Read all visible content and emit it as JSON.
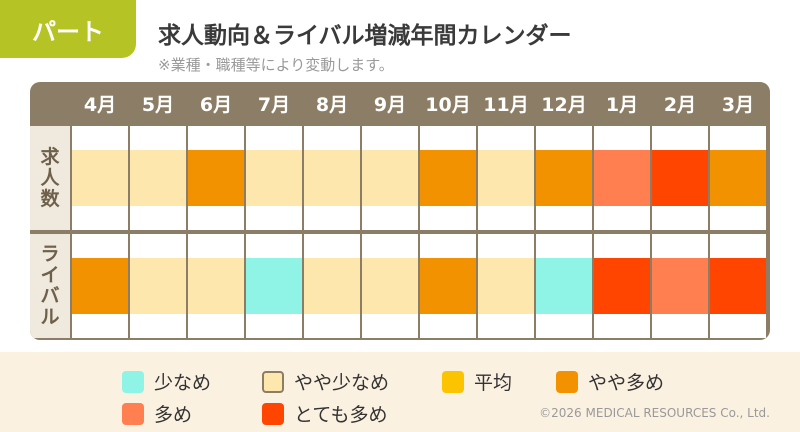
{
  "header": {
    "tag": "パート",
    "title": "求人動向＆ライバル増減年間カレンダー",
    "note": "※業種・職種等により変動します。"
  },
  "chart_data": {
    "type": "heatmap",
    "months": [
      "4月",
      "5月",
      "6月",
      "7月",
      "8月",
      "9月",
      "10月",
      "11月",
      "12月",
      "1月",
      "2月",
      "3月"
    ],
    "rows": [
      {
        "label": "求人数",
        "levels": [
          "やや少なめ",
          "やや少なめ",
          "やや多め",
          "やや少なめ",
          "やや少なめ",
          "やや少なめ",
          "やや多め",
          "やや少なめ",
          "やや多め",
          "多め",
          "とても多め",
          "やや多め"
        ]
      },
      {
        "label": "ライバル",
        "levels": [
          "やや多め",
          "やや少なめ",
          "やや少なめ",
          "少なめ",
          "やや少なめ",
          "やや少なめ",
          "やや多め",
          "やや少なめ",
          "少なめ",
          "とても多め",
          "多め",
          "とても多め"
        ]
      }
    ],
    "legend": [
      {
        "label": "少なめ",
        "color": "#8ff3e6"
      },
      {
        "label": "やや少なめ",
        "color": "#fde7ad"
      },
      {
        "label": "平均",
        "color": "#fcc400"
      },
      {
        "label": "やや多め",
        "color": "#f39200"
      },
      {
        "label": "多め",
        "color": "#ff7f50"
      },
      {
        "label": "とても多め",
        "color": "#ff4500"
      }
    ]
  },
  "copyright": "©2026 MEDICAL RESOURCES Co., Ltd."
}
